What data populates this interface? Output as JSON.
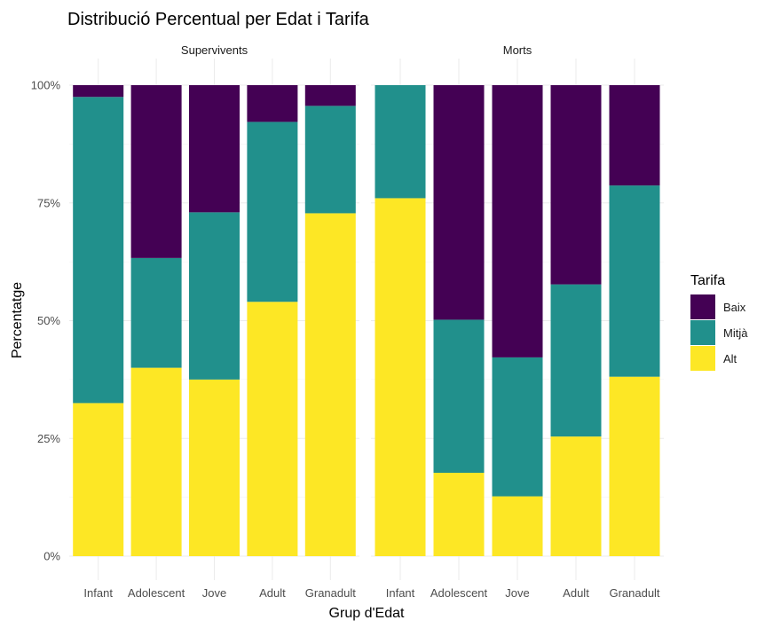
{
  "chart_data": {
    "type": "bar",
    "stacked": true,
    "percent": true,
    "title": "Distribució Percentual per Edat i Tarifa",
    "xlabel": "Grup d'Edat",
    "ylabel": "Percentatge",
    "ylim": [
      0,
      100
    ],
    "yticks": [
      "0%",
      "25%",
      "50%",
      "75%",
      "100%"
    ],
    "grid": true,
    "legend": {
      "title": "Tarifa",
      "position": "right",
      "entries": [
        {
          "name": "Baix",
          "color": "#440154"
        },
        {
          "name": "Mitjà",
          "color": "#21908C"
        },
        {
          "name": "Alt",
          "color": "#FDE725"
        }
      ]
    },
    "categories": [
      "Infant",
      "Adolescent",
      "Jove",
      "Adult",
      "Granadult"
    ],
    "facets": [
      {
        "label": "Supervivents",
        "series": [
          {
            "name": "Alt",
            "values": [
              32.5,
              40,
              37.5,
              54,
              72.8
            ]
          },
          {
            "name": "Mitjà",
            "values": [
              65,
              23.3,
              35.5,
              38.2,
              22.8
            ]
          },
          {
            "name": "Baix",
            "values": [
              2.5,
              36.7,
              27,
              7.8,
              4.4
            ]
          }
        ]
      },
      {
        "label": "Morts",
        "series": [
          {
            "name": "Alt",
            "values": [
              76,
              17.7,
              12.7,
              25.4,
              38.1
            ]
          },
          {
            "name": "Mitjà",
            "values": [
              24,
              32.5,
              29.5,
              32.3,
              40.6
            ]
          },
          {
            "name": "Baix",
            "values": [
              0,
              49.8,
              57.8,
              42.3,
              21.3
            ]
          }
        ]
      }
    ]
  }
}
